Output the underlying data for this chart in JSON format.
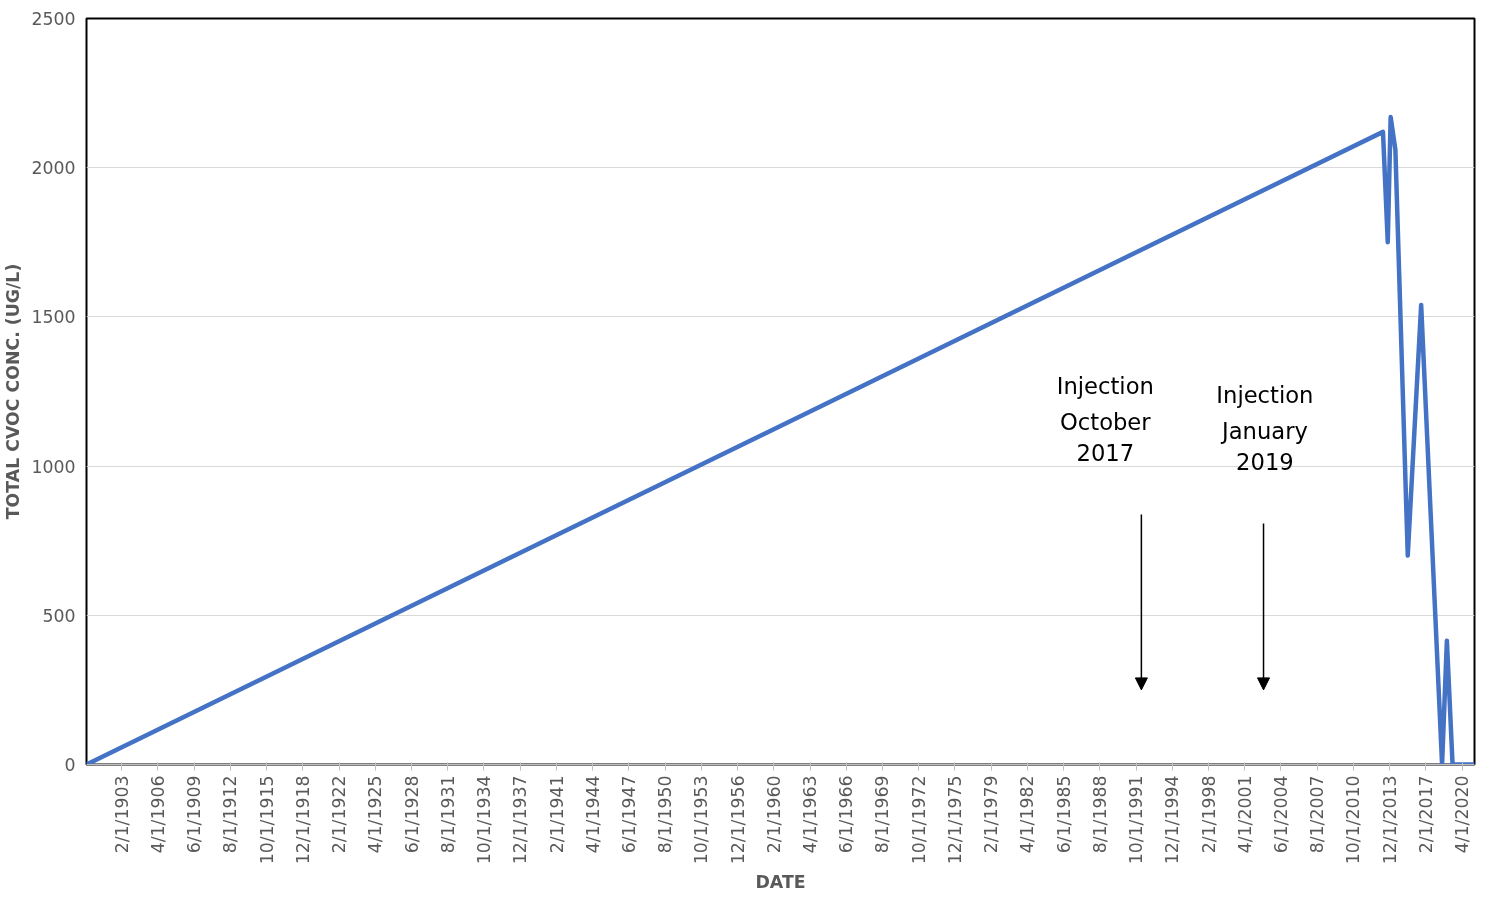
{
  "chart_data": {
    "type": "line",
    "xlabel": "DATE",
    "ylabel": "TOTAL CVOC CONC. (UG/L)",
    "x": [
      "1900-01-01",
      "2013-05-01",
      "2013-10-01",
      "2014-01-01",
      "2014-06-01",
      "2015-07-01",
      "2016-09-01",
      "2018-07-01",
      "2018-12-01",
      "2019-06-01",
      "2021-05-01"
    ],
    "series": [
      {
        "color": "#4472c4",
        "values": [
          0,
          2120,
          1750,
          2170,
          2060,
          700,
          1540,
          0,
          415,
          0,
          0
        ]
      }
    ],
    "xlim": [
      "1900-01-01",
      "2021-05-01"
    ],
    "xticks": [
      {
        "value": "1903-02-01",
        "label": "2/1/1903"
      },
      {
        "value": "1906-04-01",
        "label": "4/1/1906"
      },
      {
        "value": "1909-06-01",
        "label": "6/1/1909"
      },
      {
        "value": "1912-08-01",
        "label": "8/1/1912"
      },
      {
        "value": "1915-10-01",
        "label": "10/1/1915"
      },
      {
        "value": "1918-12-01",
        "label": "12/1/1918"
      },
      {
        "value": "1922-02-01",
        "label": "2/1/1922"
      },
      {
        "value": "1925-04-01",
        "label": "4/1/1925"
      },
      {
        "value": "1928-06-01",
        "label": "6/1/1928"
      },
      {
        "value": "1931-08-01",
        "label": "8/1/1931"
      },
      {
        "value": "1934-10-01",
        "label": "10/1/1934"
      },
      {
        "value": "1937-12-01",
        "label": "12/1/1937"
      },
      {
        "value": "1941-02-01",
        "label": "2/1/1941"
      },
      {
        "value": "1944-04-01",
        "label": "4/1/1944"
      },
      {
        "value": "1947-06-01",
        "label": "6/1/1947"
      },
      {
        "value": "1950-08-01",
        "label": "8/1/1950"
      },
      {
        "value": "1953-10-01",
        "label": "10/1/1953"
      },
      {
        "value": "1956-12-01",
        "label": "12/1/1956"
      },
      {
        "value": "1960-02-01",
        "label": "2/1/1960"
      },
      {
        "value": "1963-04-01",
        "label": "4/1/1963"
      },
      {
        "value": "1966-06-01",
        "label": "6/1/1966"
      },
      {
        "value": "1969-08-01",
        "label": "8/1/1969"
      },
      {
        "value": "1972-10-01",
        "label": "10/1/1972"
      },
      {
        "value": "1975-12-01",
        "label": "12/1/1975"
      },
      {
        "value": "1979-02-01",
        "label": "2/1/1979"
      },
      {
        "value": "1982-04-01",
        "label": "4/1/1982"
      },
      {
        "value": "1985-06-01",
        "label": "6/1/1985"
      },
      {
        "value": "1988-08-01",
        "label": "8/1/1988"
      },
      {
        "value": "1991-10-01",
        "label": "10/1/1991"
      },
      {
        "value": "1994-12-01",
        "label": "12/1/1994"
      },
      {
        "value": "1998-02-01",
        "label": "2/1/1998"
      },
      {
        "value": "2001-04-01",
        "label": "4/1/2001"
      },
      {
        "value": "2004-06-01",
        "label": "6/1/2004"
      },
      {
        "value": "2007-08-01",
        "label": "8/1/2007"
      },
      {
        "value": "2010-10-01",
        "label": "10/1/2010"
      },
      {
        "value": "2013-12-01",
        "label": "12/1/2013"
      },
      {
        "value": "2017-02-01",
        "label": "2/1/2017"
      },
      {
        "value": "2020-04-01",
        "label": "4/1/2020"
      }
    ],
    "ylim": [
      0,
      2500
    ],
    "yticks": [
      0,
      500,
      1000,
      1500,
      2000,
      2500
    ],
    "grid": "y",
    "line_style": "solid",
    "annotations": [
      "Injection October 2017",
      "Injection January 2019"
    ]
  }
}
